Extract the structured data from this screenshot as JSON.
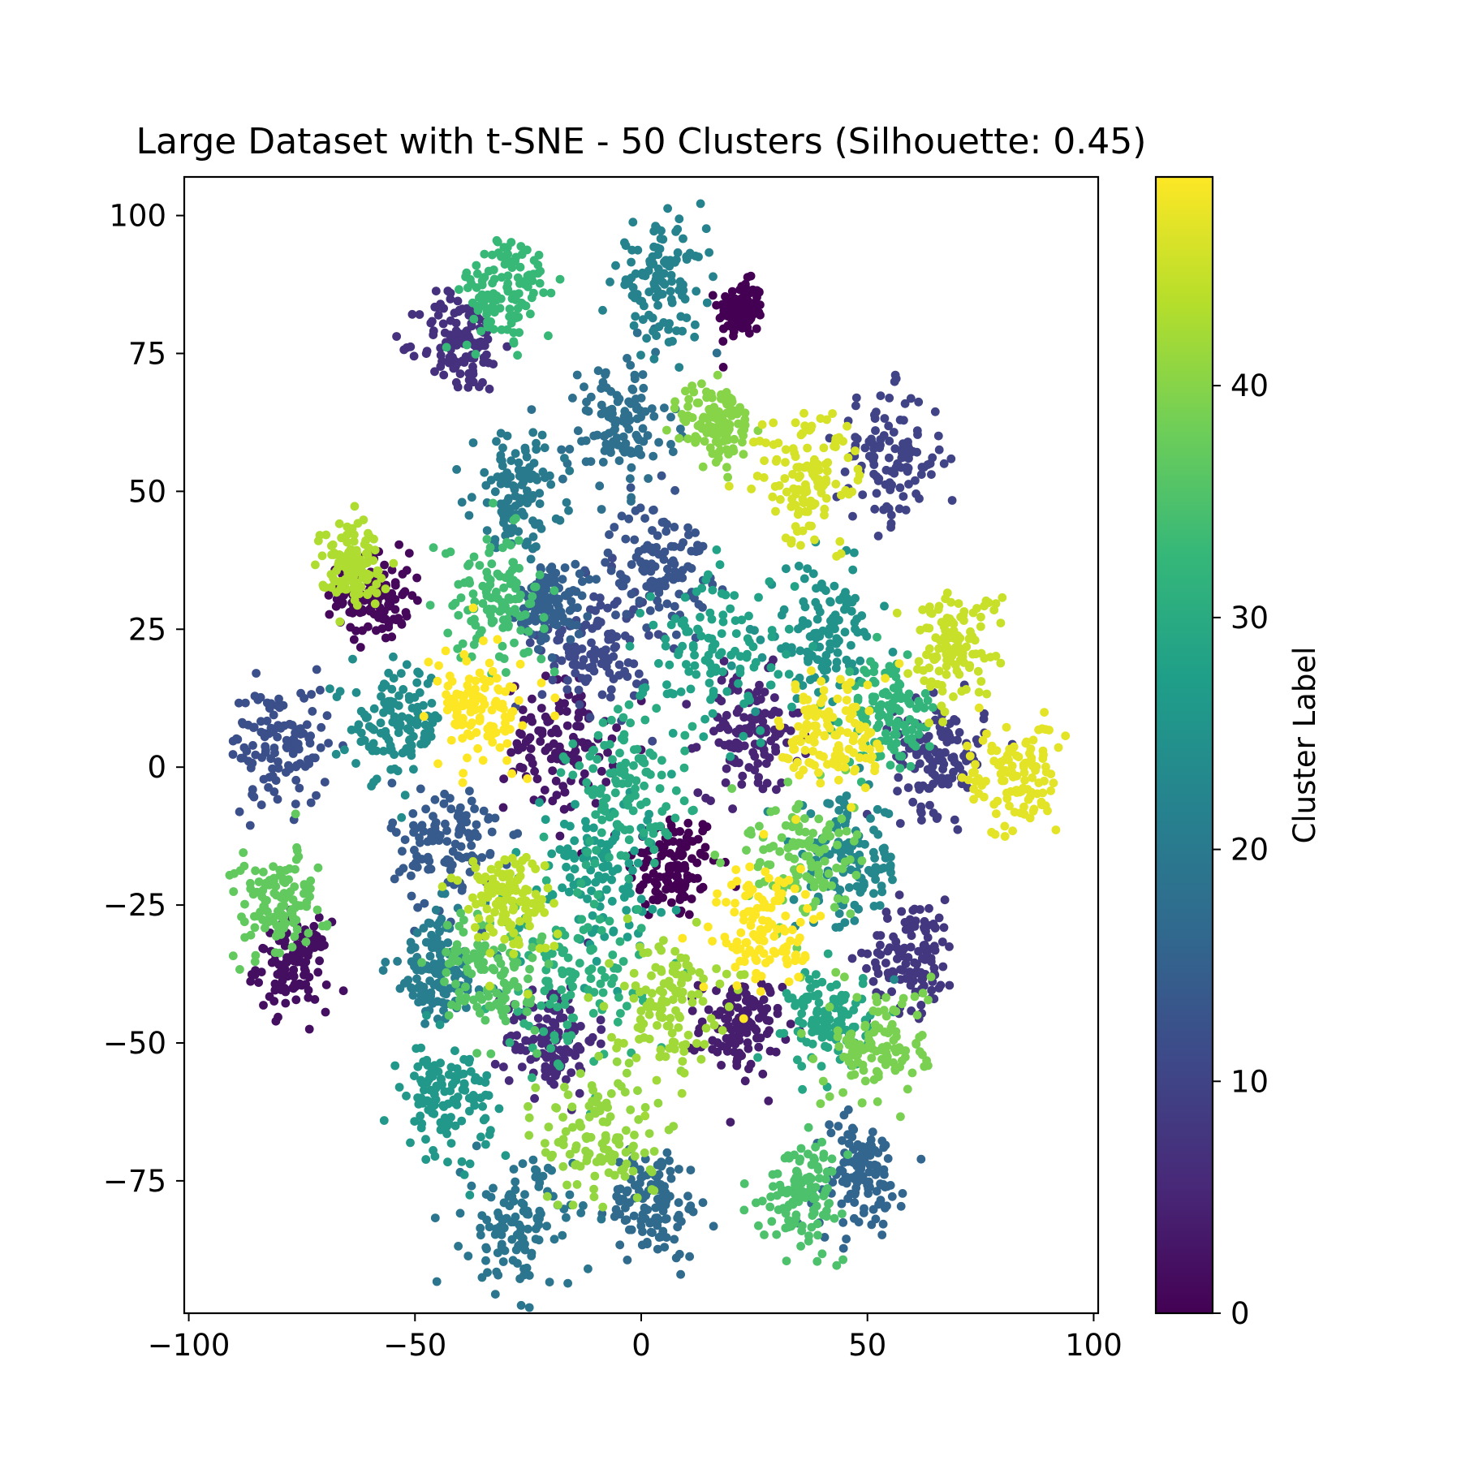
{
  "chart_data": {
    "type": "scatter",
    "title": "Large Dataset with t-SNE - 50 Clusters (Silhouette: 0.45)",
    "xlabel": "",
    "ylabel": "",
    "xlim": [
      -101,
      101
    ],
    "ylim": [
      -99,
      107
    ],
    "grid": false,
    "x_ticks": [
      -100,
      -50,
      0,
      50,
      100
    ],
    "x_tick_labels": [
      "−100",
      "−50",
      "0",
      "50",
      "100"
    ],
    "y_ticks": [
      100,
      75,
      50,
      25,
      0,
      -25,
      -50,
      -75
    ],
    "y_tick_labels": [
      "100",
      "75",
      "50",
      "25",
      "0",
      "−25",
      "−50",
      "−75"
    ],
    "colorbar": {
      "label": "Cluster Label",
      "range": [
        0,
        49
      ],
      "ticks": [
        0,
        10,
        20,
        30,
        40
      ],
      "tick_labels": [
        "0",
        "10",
        "20",
        "30",
        "40"
      ],
      "colormap": "viridis",
      "colors": [
        "#440154",
        "#482878",
        "#3e4989",
        "#31688e",
        "#26828e",
        "#1f9e89",
        "#35b779",
        "#6ece58",
        "#b5de2b",
        "#fde725"
      ]
    },
    "point_count_per_cluster": 120,
    "clusters": [
      {
        "label": 0,
        "cx": 7,
        "cy": -18,
        "spread": 5.0
      },
      {
        "label": 0,
        "cx": 22,
        "cy": 83,
        "spread": 2.5
      },
      {
        "label": 1,
        "cx": -59,
        "cy": 31,
        "spread": 4.0
      },
      {
        "label": 2,
        "cx": -77,
        "cy": -36,
        "spread": 4.0
      },
      {
        "label": 3,
        "cx": -18,
        "cy": 4,
        "spread": 6.0
      },
      {
        "label": 4,
        "cx": 22,
        "cy": -47,
        "spread": 4.5
      },
      {
        "label": 5,
        "cx": 24,
        "cy": 6,
        "spread": 5.5
      },
      {
        "label": 6,
        "cx": -20,
        "cy": -49,
        "spread": 5.0
      },
      {
        "label": 7,
        "cx": -40,
        "cy": 77,
        "spread": 4.5
      },
      {
        "label": 8,
        "cx": 60,
        "cy": -34,
        "spread": 5.0
      },
      {
        "label": 9,
        "cx": 66,
        "cy": 2,
        "spread": 5.0
      },
      {
        "label": 10,
        "cx": 55,
        "cy": 56,
        "spread": 6.0
      },
      {
        "label": 11,
        "cx": -10,
        "cy": 22,
        "spread": 6.0
      },
      {
        "label": 12,
        "cx": -80,
        "cy": 4,
        "spread": 5.5
      },
      {
        "label": 13,
        "cx": 4,
        "cy": 37,
        "spread": 5.5
      },
      {
        "label": 14,
        "cx": -43,
        "cy": -14,
        "spread": 6.0
      },
      {
        "label": 15,
        "cx": -20,
        "cy": 30,
        "spread": 3.5
      },
      {
        "label": 16,
        "cx": 48,
        "cy": -74,
        "spread": 5.0
      },
      {
        "label": 17,
        "cx": 3,
        "cy": -79,
        "spread": 5.0
      },
      {
        "label": 18,
        "cx": -5,
        "cy": 62,
        "spread": 6.0
      },
      {
        "label": 19,
        "cx": -27,
        "cy": -83,
        "spread": 6.0
      },
      {
        "label": 20,
        "cx": -27,
        "cy": 50,
        "spread": 5.0
      },
      {
        "label": 21,
        "cx": -45,
        "cy": -37,
        "spread": 5.5
      },
      {
        "label": 22,
        "cx": 4,
        "cy": 88,
        "spread": 5.0
      },
      {
        "label": 23,
        "cx": 46,
        "cy": -18,
        "spread": 6.0
      },
      {
        "label": 24,
        "cx": -54,
        "cy": 8,
        "spread": 5.0
      },
      {
        "label": 25,
        "cx": 40,
        "cy": 24,
        "spread": 6.0
      },
      {
        "label": 26,
        "cx": -43,
        "cy": -60,
        "spread": 5.0
      },
      {
        "label": 27,
        "cx": -10,
        "cy": -18,
        "spread": 7.0
      },
      {
        "label": 28,
        "cx": 17,
        "cy": 20,
        "spread": 8.0
      },
      {
        "label": 29,
        "cx": 42,
        "cy": -46,
        "spread": 4.5
      },
      {
        "label": 30,
        "cx": -3,
        "cy": -4,
        "spread": 7.0
      },
      {
        "label": 31,
        "cx": -16,
        "cy": -40,
        "spread": 8.0
      },
      {
        "label": 32,
        "cx": 55,
        "cy": 10,
        "spread": 5.0
      },
      {
        "label": 33,
        "cx": -30,
        "cy": 86,
        "spread": 5.0
      },
      {
        "label": 34,
        "cx": -32,
        "cy": 31,
        "spread": 5.5
      },
      {
        "label": 35,
        "cx": 36,
        "cy": -77,
        "spread": 4.5
      },
      {
        "label": 36,
        "cx": -34,
        "cy": -37,
        "spread": 5.5
      },
      {
        "label": 37,
        "cx": -80,
        "cy": -25,
        "spread": 5.0
      },
      {
        "label": 38,
        "cx": 35,
        "cy": -16,
        "spread": 6.0
      },
      {
        "label": 39,
        "cx": 53,
        "cy": -50,
        "spread": 5.5
      },
      {
        "label": 40,
        "cx": 17,
        "cy": 62,
        "spread": 4.0
      },
      {
        "label": 41,
        "cx": -9,
        "cy": -67,
        "spread": 6.5
      },
      {
        "label": 42,
        "cx": 5,
        "cy": -42,
        "spread": 6.0
      },
      {
        "label": 43,
        "cx": -64,
        "cy": 37,
        "spread": 3.5
      },
      {
        "label": 44,
        "cx": -30,
        "cy": -24,
        "spread": 5.0
      },
      {
        "label": 45,
        "cx": 69,
        "cy": 22,
        "spread": 5.0
      },
      {
        "label": 46,
        "cx": 37,
        "cy": 52,
        "spread": 6.0
      },
      {
        "label": 47,
        "cx": 82,
        "cy": -2,
        "spread": 5.0
      },
      {
        "label": 48,
        "cx": 43,
        "cy": 6,
        "spread": 6.0
      },
      {
        "label": 49,
        "cx": 27,
        "cy": -29,
        "spread": 6.0
      },
      {
        "label": 49,
        "cx": -35,
        "cy": 10,
        "spread": 5.0
      }
    ]
  }
}
